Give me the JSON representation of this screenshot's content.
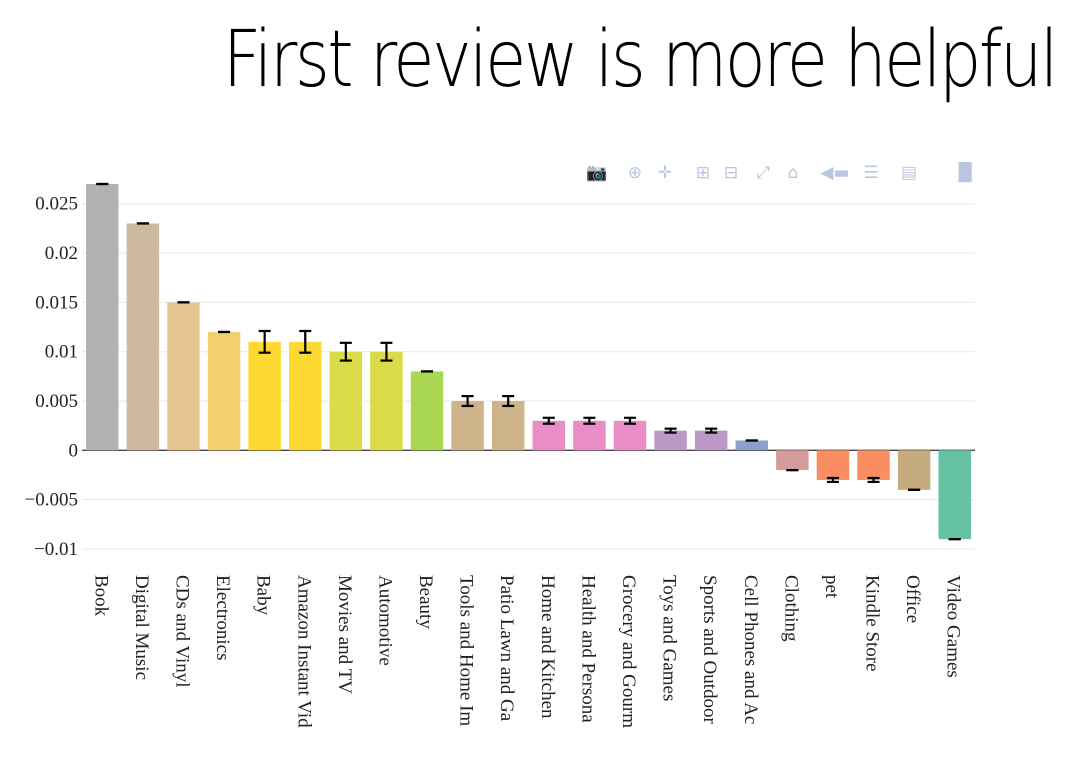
{
  "title": "First review is more helpful",
  "chart_data": {
    "type": "bar",
    "title": "First review is more helpful",
    "xlabel": "",
    "ylabel": "",
    "ylim": [
      -0.0105,
      0.0275
    ],
    "yticks": [
      -0.01,
      -0.005,
      0,
      0.005,
      0.01,
      0.015,
      0.02,
      0.025
    ],
    "ytick_labels": [
      "−0.01",
      "−0.005",
      "0",
      "0.005",
      "0.01",
      "0.015",
      "0.02",
      "0.025"
    ],
    "grid": true,
    "categories": [
      "Book",
      "Digital Music",
      "CDs and Vinyl",
      "Electronics",
      "Baby",
      "Amazon Instant Vid",
      "Movies and TV",
      "Automotive",
      "Beauty",
      "Tools and Home Im",
      "Patio Lawn and Ga",
      "Home and Kitchen",
      "Health and Persona",
      "Grocery and Gourm",
      "Toys and Games",
      "Sports and Outdoor",
      "Cell Phones and Ac",
      "Clothing",
      "pet",
      "Kindle Store",
      "Office",
      "Video Games"
    ],
    "values": [
      0.027,
      0.023,
      0.015,
      0.012,
      0.011,
      0.011,
      0.01,
      0.01,
      0.008,
      0.005,
      0.005,
      0.003,
      0.003,
      0.003,
      0.002,
      0.002,
      0.001,
      -0.002,
      -0.003,
      -0.003,
      -0.004,
      -0.009
    ],
    "errors": [
      0.0,
      0.0,
      0.0,
      0.0,
      0.0011,
      0.0011,
      0.0009,
      0.0009,
      0.0,
      0.0005,
      0.0005,
      0.0003,
      0.0003,
      0.0003,
      0.0002,
      0.0002,
      0.0,
      0.0,
      0.0002,
      0.0002,
      0.0,
      0.0
    ],
    "colors": [
      "#b2b2b2",
      "#cdb99e",
      "#e6c48f",
      "#f5cf6b",
      "#fdd931",
      "#fdd931",
      "#d9db49",
      "#d9db49",
      "#a9d752",
      "#cfb48b",
      "#cfb48b",
      "#e88dc6",
      "#e88dc6",
      "#e88dc6",
      "#bb98c7",
      "#bb98c7",
      "#8da0cb",
      "#d39c9b",
      "#fb8d62",
      "#fb8d62",
      "#c5ab7d",
      "#66c2a5"
    ]
  },
  "modebar": {
    "icons": [
      "camera-icon",
      "zoom-icon",
      "pan-icon",
      "zoom-in-icon",
      "zoom-out-icon",
      "autoscale-icon",
      "home-icon",
      "spike-lines-icon",
      "compare-hover-icon",
      "closest-hover-icon",
      "plotly-logo-icon"
    ],
    "color": "#b8c6de"
  }
}
